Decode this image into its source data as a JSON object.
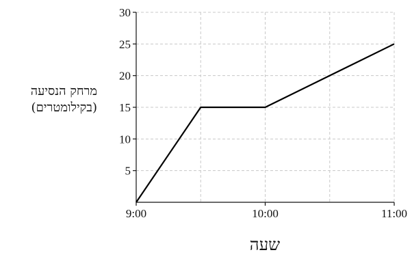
{
  "chart_data": {
    "type": "line",
    "xlabel": "שעה",
    "ylabel": [
      "מרחק הנסיעה",
      "(בקילומטרים)"
    ],
    "x_ticks": [
      "9:00",
      "10:00",
      "11:00"
    ],
    "y_ticks": [
      5,
      10,
      15,
      20,
      25,
      30
    ],
    "xlim": [
      "9:00",
      "11:00"
    ],
    "ylim": [
      0,
      30
    ],
    "grid": true,
    "series": [
      {
        "points": [
          {
            "x": "9:00",
            "y": 0
          },
          {
            "x": "9:30",
            "y": 15
          },
          {
            "x": "10:00",
            "y": 15
          },
          {
            "x": "11:00",
            "y": 25
          }
        ]
      }
    ]
  }
}
